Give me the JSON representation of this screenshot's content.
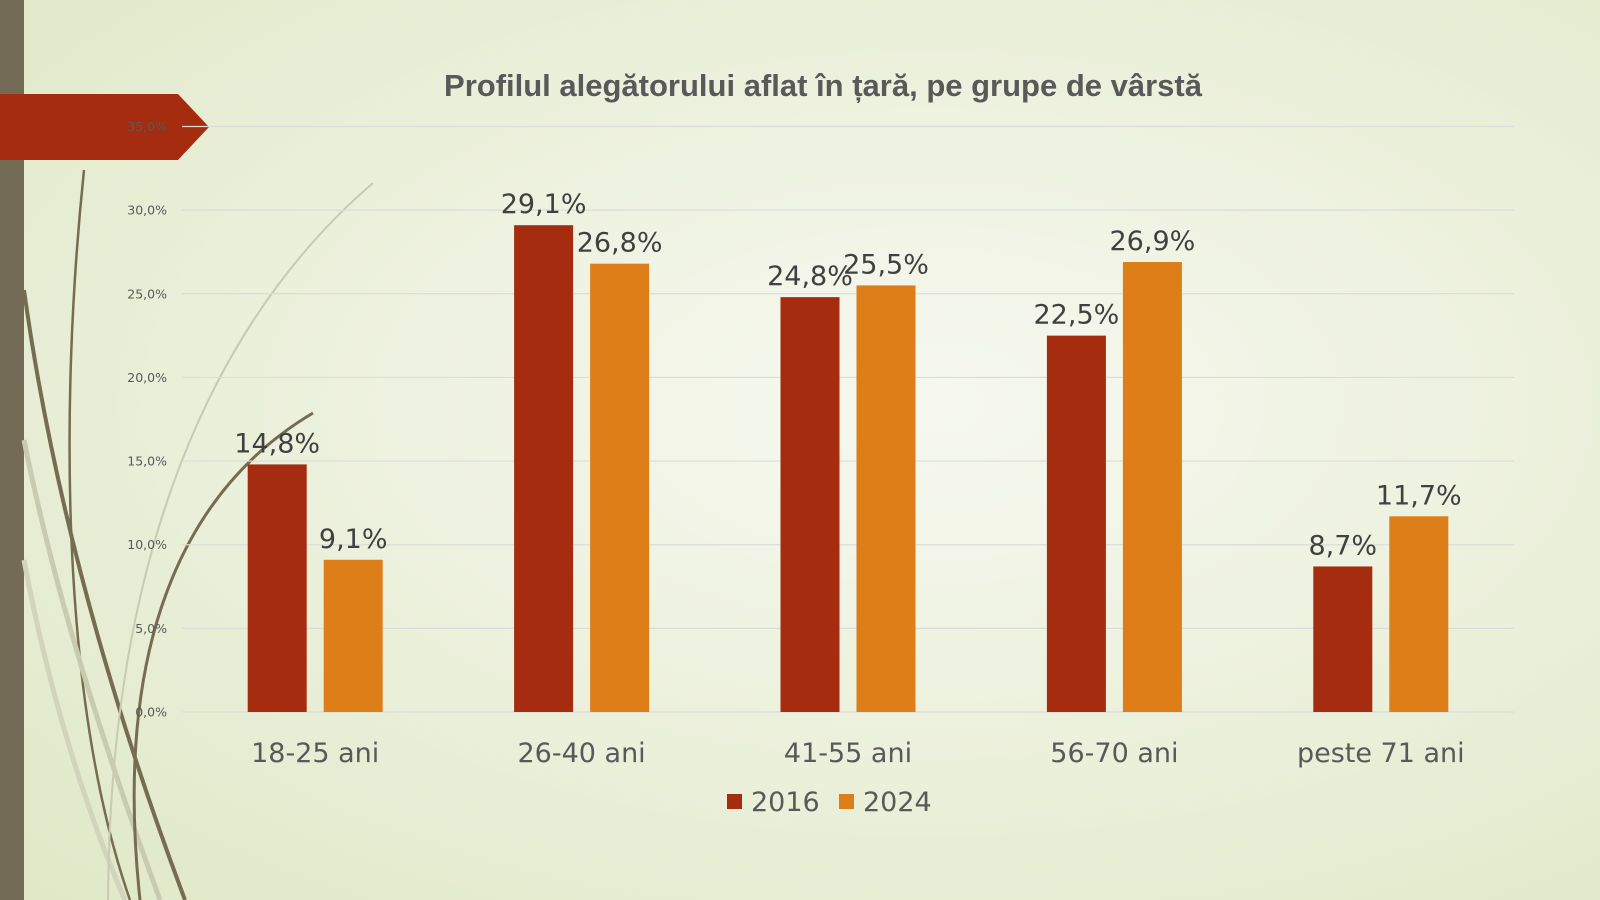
{
  "chart_data": {
    "type": "bar",
    "title": "Profilul alegătorului aflat în țară, pe grupe de vârstă",
    "categories": [
      "18-25 ani",
      "26-40 ani",
      "41-55 ani",
      "56-70 ani",
      "peste 71 ani"
    ],
    "series": [
      {
        "name": "2016",
        "color": "#a52c0e",
        "values": [
          14.8,
          29.1,
          24.8,
          22.5,
          8.7
        ],
        "labels": [
          "14,8%",
          "29,1%",
          "24,8%",
          "22,5%",
          "8,7%"
        ]
      },
      {
        "name": "2024",
        "color": "#dd7e19",
        "values": [
          9.1,
          26.8,
          25.5,
          26.9,
          11.7
        ],
        "labels": [
          "9,1%",
          "26,8%",
          "25,5%",
          "26,9%",
          "11,7%"
        ]
      }
    ],
    "ylim": [
      0,
      35
    ],
    "yticks": [
      0,
      5,
      10,
      15,
      20,
      25,
      30,
      35
    ],
    "ytick_labels": [
      "0,0%",
      "5,0%",
      "10,0%",
      "15,0%",
      "20,0%",
      "25,0%",
      "30,0%",
      "35,0%"
    ],
    "xlabel": "",
    "ylabel": "",
    "grid": true,
    "legend_position": "bottom"
  },
  "colors": {
    "accent": "#a52c0e",
    "sidebar": "#736b55"
  }
}
